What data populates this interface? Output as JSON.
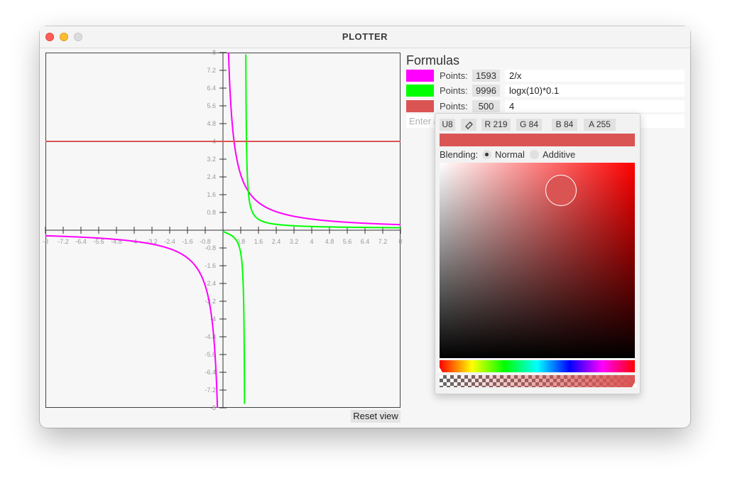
{
  "window": {
    "title": "PLOTTER"
  },
  "plot": {
    "x_ticks": [
      "-8",
      "-7.2",
      "-6.4",
      "-5.6",
      "-4.8",
      "-4",
      "-3.2",
      "-2.4",
      "-1.6",
      "-0.8",
      "0.8",
      "1.6",
      "2.4",
      "3.2",
      "4",
      "4.8",
      "5.6",
      "6.4",
      "7.2",
      "8"
    ],
    "y_ticks": [
      "8",
      "7.2",
      "6.4",
      "5.6",
      "4.8",
      "4",
      "3.2",
      "2.4",
      "1.6",
      "0.8",
      "-0.8",
      "-1.6",
      "-2.4",
      "-3.2",
      "-4",
      "-4.8",
      "-5.6",
      "-6.4",
      "-7.2",
      "-8"
    ],
    "y_tick_values": [
      8,
      7.2,
      6.4,
      5.6,
      4.8,
      4,
      3.2,
      2.4,
      1.6,
      0.8,
      -0.8,
      -1.6,
      -2.4,
      -3.2,
      -4,
      -4.8,
      -5.6,
      -6.4,
      -7.2,
      -8
    ],
    "x_tick_values": [
      -8,
      -7.2,
      -6.4,
      -5.6,
      -4.8,
      -4,
      -3.2,
      -2.4,
      -1.6,
      -0.8,
      0.8,
      1.6,
      2.4,
      3.2,
      4,
      4.8,
      5.6,
      6.4,
      7.2,
      8
    ],
    "xlim": [
      -8,
      8
    ],
    "ylim": [
      -8,
      8
    ],
    "curves": [
      {
        "formula": "2/x",
        "color": "#ff00ff"
      },
      {
        "formula": "logx(10)*0.1",
        "color": "#00ff00"
      },
      {
        "formula": "4",
        "color": "#db5454"
      }
    ],
    "reset_label": "Reset view"
  },
  "formulas": {
    "title": "Formulas",
    "rows": [
      {
        "color": "#ff00ff",
        "points_label": "Points:",
        "points": "1593",
        "expr": "2/x"
      },
      {
        "color": "#00ff00",
        "points_label": "Points:",
        "points": "9996",
        "expr": "logx(10)*0.1"
      },
      {
        "color": "#db5454",
        "points_label": "Points:",
        "points": "500",
        "expr": "4"
      }
    ],
    "placeholder": "Enter a"
  },
  "picker": {
    "u8": "U8",
    "pipette_icon": "eyedropper-icon",
    "r": "R 219",
    "g": "G 84",
    "b": "B 84",
    "a": "A 255",
    "color": "#db5454",
    "blending_label": "Blending:",
    "normal": "Normal",
    "additive": "Additive",
    "selected_blending": "Normal",
    "hue_fraction": 0.0,
    "saturation": 0.62,
    "value": 0.86,
    "alpha": 1.0
  }
}
